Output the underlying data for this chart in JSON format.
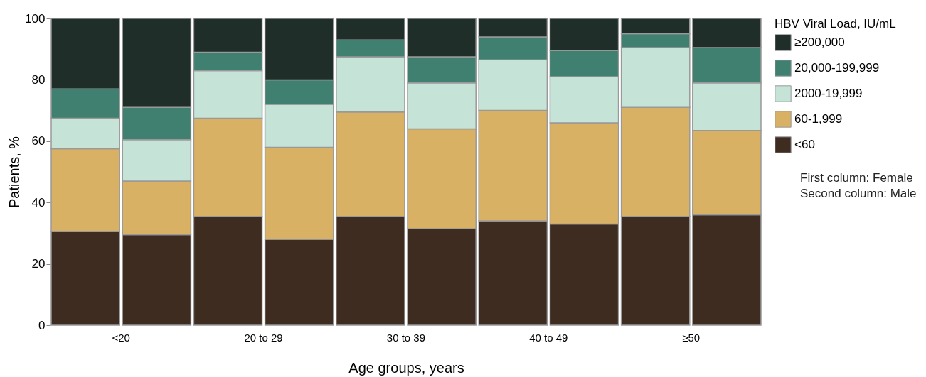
{
  "chart_data": {
    "type": "bar",
    "stacked": true,
    "xlabel": "Age groups, years",
    "ylabel": "Patients, %",
    "legend_title": "HBV Viral Load, IU/mL",
    "legend": "right",
    "categories": [
      "<20",
      null,
      "20 to 29",
      null,
      "30 to 39",
      null,
      "40 to 49",
      null,
      "≥50",
      null
    ],
    "series": [
      {
        "name": "<60",
        "color": "#3f2c20",
        "values": [
          30.5,
          29.5,
          35.5,
          28,
          35.5,
          31.5,
          34,
          33,
          35.5,
          36
        ]
      },
      {
        "name": "60-1,999",
        "color": "#d9b165",
        "values": [
          27,
          17.5,
          32,
          30,
          34,
          32.5,
          36,
          33,
          35.5,
          27.5
        ]
      },
      {
        "name": "2000-19,999",
        "color": "#c5e3d6",
        "values": [
          10,
          13.5,
          15.5,
          14,
          18,
          15,
          16.5,
          15,
          19.5,
          15.5
        ]
      },
      {
        "name": "20,000-199,999",
        "color": "#3f8070",
        "values": [
          9.5,
          10.5,
          6,
          8,
          5.5,
          8.5,
          7.5,
          8.5,
          4.5,
          11.5
        ]
      },
      {
        "name": "≥200,000",
        "color": "#1f2e28",
        "values": [
          23,
          29,
          11,
          20,
          7,
          12.5,
          6,
          10.5,
          5,
          9.5
        ]
      }
    ],
    "ylim": [
      0,
      100
    ],
    "yticks": [
      0,
      20,
      40,
      60,
      80,
      100
    ],
    "grid": false,
    "annotations": [
      "First column: Female",
      "Second column: Male"
    ]
  }
}
